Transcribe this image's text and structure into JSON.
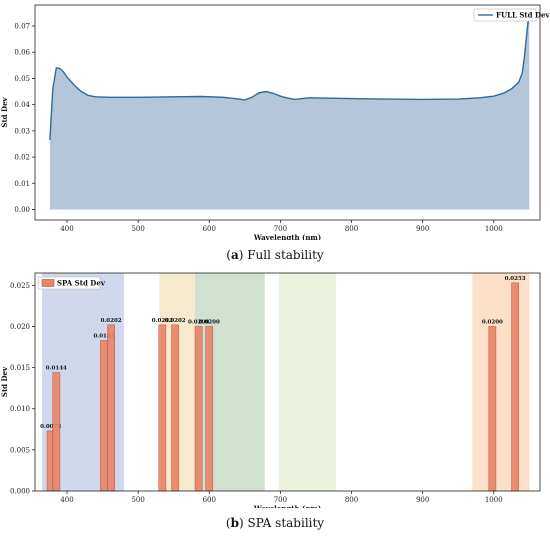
{
  "chart_data": [
    {
      "type": "area",
      "caption_label": "a",
      "caption_text": "Full stability",
      "xlabel": "Wavelength (nm)",
      "ylabel": "Std Dev",
      "xlim": [
        355,
        1065
      ],
      "ylim": [
        -0.004,
        0.078
      ],
      "xticks": [
        400,
        500,
        600,
        700,
        800,
        900,
        1000
      ],
      "yticks": [
        0.0,
        0.01,
        0.02,
        0.03,
        0.04,
        0.05,
        0.06,
        0.07
      ],
      "legend": "FULL Std Dev",
      "legend_position": "top-right",
      "grid": false,
      "colors": {
        "line": "#2f6a98",
        "fill": "#b4c7da"
      },
      "series": [
        {
          "name": "FULL Std Dev",
          "x": [
            376,
            380,
            385,
            390,
            395,
            400,
            410,
            420,
            430,
            440,
            460,
            500,
            550,
            590,
            620,
            640,
            650,
            660,
            670,
            680,
            690,
            700,
            710,
            720,
            740,
            760,
            800,
            850,
            900,
            950,
            980,
            1000,
            1015,
            1025,
            1035,
            1040,
            1043,
            1046,
            1048,
            1050
          ],
          "y": [
            0.0265,
            0.046,
            0.054,
            0.0538,
            0.0525,
            0.0505,
            0.0475,
            0.045,
            0.0435,
            0.043,
            0.0428,
            0.0428,
            0.043,
            0.0431,
            0.0428,
            0.0422,
            0.0418,
            0.0428,
            0.0445,
            0.045,
            0.0443,
            0.0432,
            0.0425,
            0.042,
            0.0426,
            0.0425,
            0.0423,
            0.0421,
            0.042,
            0.0421,
            0.0426,
            0.0432,
            0.0445,
            0.046,
            0.0485,
            0.052,
            0.058,
            0.066,
            0.071,
            0.075
          ]
        }
      ]
    },
    {
      "type": "bar",
      "caption_label": "b",
      "caption_text": "SPA stability",
      "xlabel": "Wavelength (nm)",
      "ylabel": "Std Dev",
      "xlim": [
        355,
        1065
      ],
      "ylim": [
        0,
        0.0265
      ],
      "xticks": [
        400,
        500,
        600,
        700,
        800,
        900,
        1000
      ],
      "yticks": [
        0.0,
        0.005,
        0.01,
        0.015,
        0.02,
        0.025
      ],
      "legend": "SPA Std Dev",
      "legend_position": "top-left",
      "grid": false,
      "bar_width_nm": 10,
      "colors": {
        "bar": "#e88468",
        "bar_edge": "#c0533a"
      },
      "bands": [
        {
          "from": 365,
          "to": 480,
          "color": "#c9d0ea"
        },
        {
          "from": 530,
          "to": 580,
          "color": "#f5e5c6"
        },
        {
          "from": 580,
          "to": 678,
          "color": "#c8dcc8"
        },
        {
          "from": 698,
          "to": 778,
          "color": "#e6f0d6"
        },
        {
          "from": 970,
          "to": 1050,
          "color": "#fad9bd"
        }
      ],
      "series": [
        {
          "name": "SPA Std Dev",
          "x": [
            377,
            385,
            452,
            462,
            534,
            552,
            585,
            600,
            998,
            1030
          ],
          "values": [
            0.0073,
            0.0144,
            0.0183,
            0.0202,
            0.0202,
            0.0202,
            0.02,
            0.02,
            0.02,
            0.0253
          ],
          "labels": [
            "0.0073",
            "0.0144",
            "0.0183",
            "0.0202",
            "0.0202",
            "0.0202",
            "0.0200",
            "0.0200",
            "0.0200",
            "0.0253"
          ]
        }
      ]
    }
  ]
}
